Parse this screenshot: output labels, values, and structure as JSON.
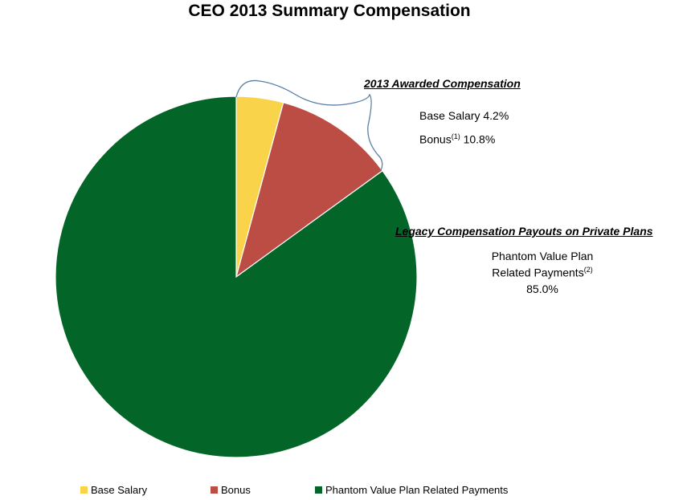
{
  "chart_data": {
    "type": "pie",
    "title": "CEO 2013 Summary Compensation",
    "slices": [
      {
        "name": "Base Salary",
        "value": 4.2,
        "color": "#F9D44B"
      },
      {
        "name": "Bonus",
        "value": 10.8,
        "color": "#BB4D45"
      },
      {
        "name": "Phantom Value Plan Related Payments",
        "value": 85.0,
        "color": "#036628"
      }
    ],
    "legend_position": "bottom",
    "annotations": {
      "awarded": {
        "heading": "2013 Awarded Compensation",
        "base_salary_text": "Base Salary 4.2%",
        "bonus_label": "Bonus",
        "bonus_sup": "(1)",
        "bonus_value": " 10.8%"
      },
      "legacy": {
        "heading": "Legacy Compensation  Payouts on Private Plans",
        "line1": "Phantom Value Plan",
        "line2": "Related Payments",
        "line2_sup": "(2)",
        "line3": "85.0%"
      }
    }
  }
}
